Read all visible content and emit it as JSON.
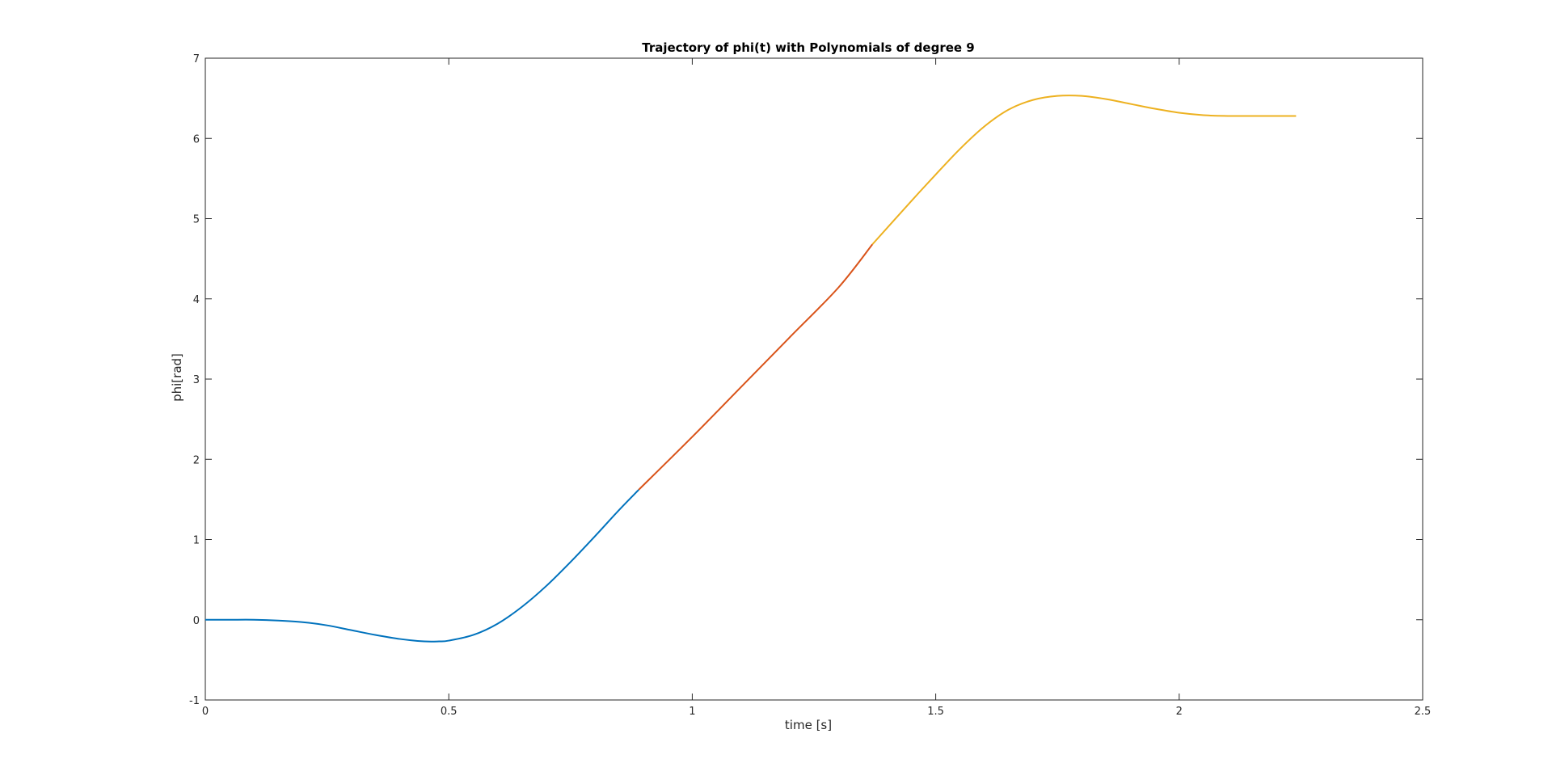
{
  "chart_data": {
    "type": "line",
    "title": "Trajectory of phi(t) with Polynomials of degree 9",
    "xlabel": "time [s]",
    "ylabel": "phi[rad]",
    "xlim": [
      0,
      2.5
    ],
    "ylim": [
      -1,
      7
    ],
    "xticks": [
      0,
      0.5,
      1,
      1.5,
      2,
      2.5
    ],
    "xtick_labels": [
      "0",
      "0.5",
      "1",
      "1.5",
      "2",
      "2.5"
    ],
    "yticks": [
      -1,
      0,
      1,
      2,
      3,
      4,
      5,
      6,
      7
    ],
    "ytick_labels": [
      "-1",
      "0",
      "1",
      "2",
      "3",
      "4",
      "5",
      "6",
      "7"
    ],
    "grid": false,
    "legend": "none",
    "series": [
      {
        "color": "#0072BD",
        "x": [
          0,
          0.05,
          0.1,
          0.15,
          0.2,
          0.25,
          0.3,
          0.35,
          0.4,
          0.45,
          0.48,
          0.5,
          0.55,
          0.6,
          0.65,
          0.7,
          0.75,
          0.8,
          0.85,
          0.89
        ],
        "y": [
          0,
          0,
          0,
          -0.01,
          -0.03,
          -0.07,
          -0.13,
          -0.19,
          -0.24,
          -0.27,
          -0.27,
          -0.26,
          -0.19,
          -0.05,
          0.16,
          0.42,
          0.72,
          1.04,
          1.37,
          1.62
        ]
      },
      {
        "color": "#D95319",
        "x": [
          0.89,
          1.0,
          1.1,
          1.2,
          1.3,
          1.37
        ],
        "y": [
          1.62,
          2.28,
          2.9,
          3.52,
          4.14,
          4.68
        ]
      },
      {
        "color": "#EDB120",
        "x": [
          1.37,
          1.45,
          1.5,
          1.55,
          1.6,
          1.65,
          1.7,
          1.75,
          1.8,
          1.85,
          1.9,
          1.95,
          2.0,
          2.05,
          2.1,
          2.15,
          2.2,
          2.24
        ],
        "y": [
          4.68,
          5.22,
          5.55,
          5.87,
          6.15,
          6.36,
          6.48,
          6.53,
          6.53,
          6.49,
          6.43,
          6.37,
          6.32,
          6.29,
          6.28,
          6.28,
          6.28,
          6.28
        ]
      }
    ]
  }
}
